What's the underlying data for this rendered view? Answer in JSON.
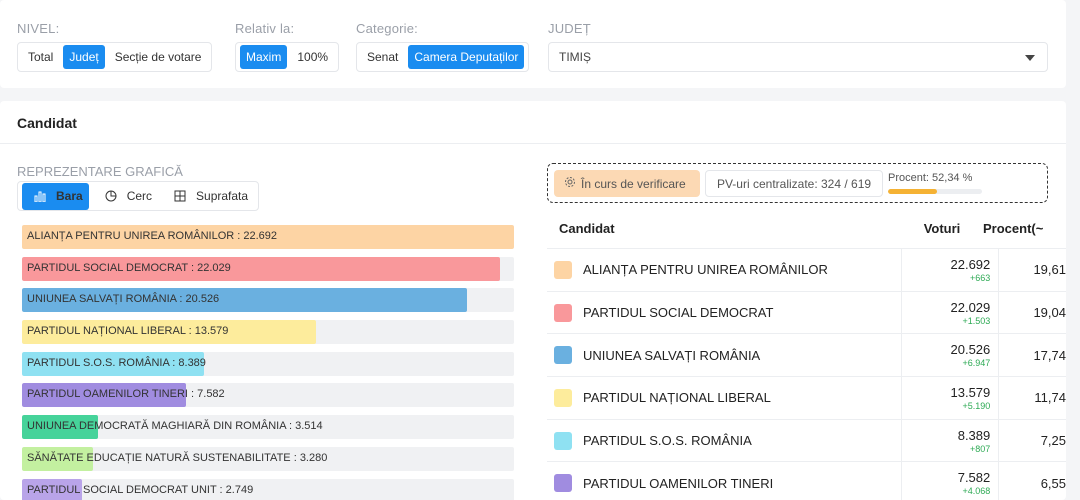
{
  "filters": {
    "nivel": {
      "label": "NIVEL:",
      "options": [
        "Total",
        "Județ",
        "Secție de votare"
      ],
      "active": 1
    },
    "relativ": {
      "label": "Relativ la:",
      "options": [
        "Maxim",
        "100%"
      ],
      "active": 0
    },
    "categorie": {
      "label": "Categorie:",
      "options": [
        "Senat",
        "Camera Deputaților"
      ],
      "active": 1
    },
    "judet": {
      "label": "JUDEȚ",
      "value": "TIMIȘ"
    }
  },
  "card_title": "Candidat",
  "representation": {
    "label": "REPREZENTARE GRAFICĂ",
    "options": [
      {
        "label": "Bara",
        "icon": "bar-chart-icon"
      },
      {
        "label": "Cerc",
        "icon": "pie-chart-icon"
      },
      {
        "label": "Suprafata",
        "icon": "grid-icon"
      }
    ],
    "active": 0
  },
  "status": {
    "verification": "În curs de verificare",
    "pv": "PV-uri centralizate: 324 / 619",
    "percent_label": "Procent: 52,34 %",
    "percent_value": 52.34
  },
  "chart_data": {
    "type": "bar",
    "orientation": "horizontal",
    "categories": [
      "ALIANȚA PENTRU UNIREA ROMÂNILOR",
      "PARTIDUL SOCIAL DEMOCRAT",
      "UNIUNEA SALVAȚI ROMÂNIA",
      "PARTIDUL NAȚIONAL LIBERAL",
      "PARTIDUL S.O.S. ROMÂNIA",
      "PARTIDUL OAMENILOR TINERI",
      "UNIUNEA DEMOCRATĂ MAGHIARĂ DIN ROMÂNIA",
      "SĂNĂTATE EDUCAȚIE NATURĂ SUSTENABILITATE",
      "PARTIDUL SOCIAL DEMOCRAT UNIT"
    ],
    "labels": [
      "22.692",
      "22.029",
      "20.526",
      "13.579",
      "8.389",
      "7.582",
      "3.514",
      "3.280",
      "2.749"
    ],
    "values": [
      22692,
      22029,
      20526,
      13579,
      8389,
      7582,
      3514,
      3280,
      2749
    ],
    "colors": [
      "#fdd4a4",
      "#f9989b",
      "#6ab0e0",
      "#fdec9c",
      "#8fe1f2",
      "#a08ce0",
      "#46d39a",
      "#c3f0a0",
      "#b9a4e9"
    ],
    "relative_to": "max"
  },
  "table": {
    "headers": {
      "candidate": "Candidat",
      "votes": "Voturi",
      "percent": "Procent(~"
    },
    "rows": [
      {
        "name": "ALIANȚA PENTRU UNIREA ROMÂNILOR",
        "votes": "22.692",
        "delta": "+663",
        "percent": "19,61",
        "color": "#fdd4a4"
      },
      {
        "name": "PARTIDUL SOCIAL DEMOCRAT",
        "votes": "22.029",
        "delta": "+1.503",
        "percent": "19,04",
        "color": "#f9989b"
      },
      {
        "name": "UNIUNEA SALVAȚI ROMÂNIA",
        "votes": "20.526",
        "delta": "+6.947",
        "percent": "17,74",
        "color": "#6ab0e0"
      },
      {
        "name": "PARTIDUL NAȚIONAL LIBERAL",
        "votes": "13.579",
        "delta": "+5.190",
        "percent": "11,74",
        "color": "#fdec9c"
      },
      {
        "name": "PARTIDUL S.O.S. ROMÂNIA",
        "votes": "8.389",
        "delta": "+807",
        "percent": "7,25",
        "color": "#8fe1f2"
      },
      {
        "name": "PARTIDUL OAMENILOR TINERI",
        "votes": "7.582",
        "delta": "+4.068",
        "percent": "6,55",
        "color": "#a08ce0"
      }
    ]
  }
}
